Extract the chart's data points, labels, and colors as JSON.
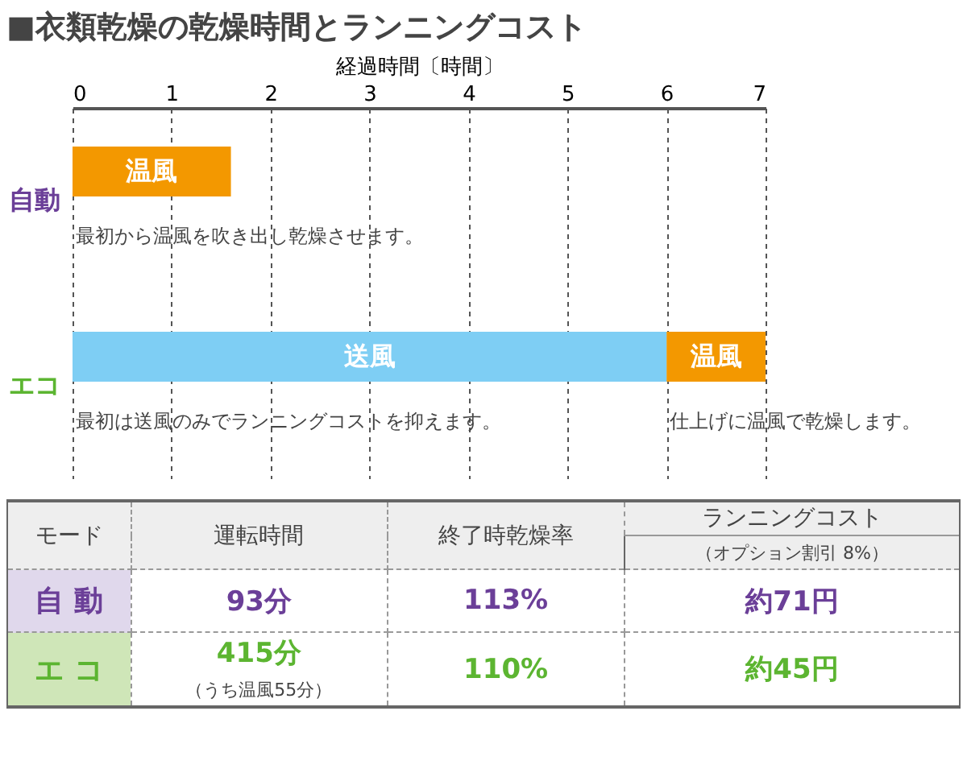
{
  "chart_data": {
    "type": "bar",
    "title": "■衣類乾燥の乾燥時間とランニングコスト",
    "orientation": "horizontal",
    "xlabel": "経過時間〔時間〕",
    "categories": [
      "自動",
      "エコ"
    ],
    "series": [
      {
        "name": "温風",
        "color": "#f39800",
        "values": [
          1.6,
          1.0
        ],
        "base": [
          0,
          6
        ]
      },
      {
        "name": "送風",
        "color": "#7ecef4",
        "values": [
          null,
          6.0
        ],
        "base": [
          null,
          0
        ]
      }
    ],
    "xlim": [
      0,
      7
    ],
    "xticks": [
      0,
      1,
      2,
      3,
      4,
      5,
      6,
      7
    ],
    "grid": "x",
    "annotations": [
      "最初から温風を吹き出し乾燥させます。",
      "最初は送風のみでランニングコストを抑えます。",
      "仕上げに温風で乾燥します。",
      "モード",
      "運転時間",
      "終了時乾燥率",
      "ランニングコスト",
      "（オプション割引 8%）",
      "自 動",
      "93分",
      "113%",
      "約71円",
      "エ コ",
      "415分",
      "（うち温風55分）",
      "110%",
      "約45円"
    ]
  }
}
